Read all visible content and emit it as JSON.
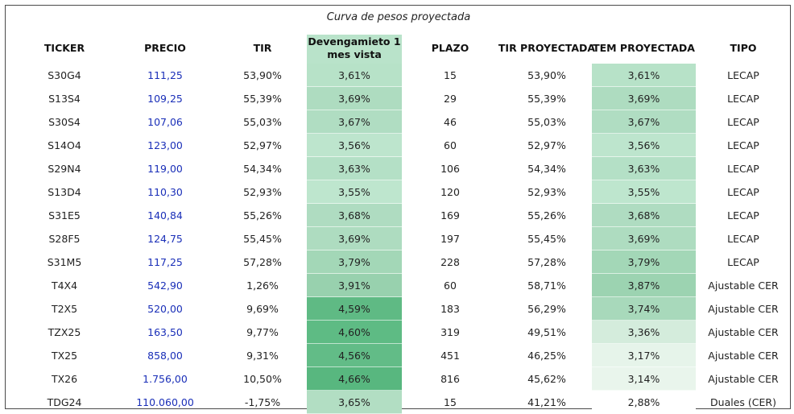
{
  "title": "Curva de pesos proyectada",
  "columns": {
    "ticker": "TICKER",
    "precio": "PRECIO",
    "tir": "TIR",
    "devengamiento": "Devengamieto 1\nmes vista",
    "plazo": "PLAZO",
    "tir_proyectada": "TIR PROYECTADA",
    "tem_proyectada": "TEM PROYECTADA",
    "tipo": "TIPO"
  },
  "rows": [
    {
      "ticker": "S30G4",
      "precio": "111,25",
      "tir": "53,90%",
      "dev": "3,61%",
      "plazo": "15",
      "tir_proy": "53,90%",
      "tem_proy": "3,61%",
      "tipo": "LECAP",
      "dev_color": "#b7e2c8",
      "tem_color": "#b7e2c8"
    },
    {
      "ticker": "S13S4",
      "precio": "109,25",
      "tir": "55,39%",
      "dev": "3,69%",
      "plazo": "29",
      "tir_proy": "55,39%",
      "tem_proy": "3,69%",
      "tipo": "LECAP",
      "dev_color": "#aedcc0",
      "tem_color": "#aedcc0"
    },
    {
      "ticker": "S30S4",
      "precio": "107,06",
      "tir": "55,03%",
      "dev": "3,67%",
      "plazo": "46",
      "tir_proy": "55,03%",
      "tem_proy": "3,67%",
      "tipo": "LECAP",
      "dev_color": "#b0ddc2",
      "tem_color": "#b0ddc2"
    },
    {
      "ticker": "S14O4",
      "precio": "123,00",
      "tir": "52,97%",
      "dev": "3,56%",
      "plazo": "60",
      "tir_proy": "52,97%",
      "tem_proy": "3,56%",
      "tipo": "LECAP",
      "dev_color": "#bde5cd",
      "tem_color": "#bde5cd"
    },
    {
      "ticker": "S29N4",
      "precio": "119,00",
      "tir": "54,34%",
      "dev": "3,63%",
      "plazo": "106",
      "tir_proy": "54,34%",
      "tem_proy": "3,63%",
      "tipo": "LECAP",
      "dev_color": "#b4e0c6",
      "tem_color": "#b4e0c6"
    },
    {
      "ticker": "S13D4",
      "precio": "110,30",
      "tir": "52,93%",
      "dev": "3,55%",
      "plazo": "120",
      "tir_proy": "52,93%",
      "tem_proy": "3,55%",
      "tipo": "LECAP",
      "dev_color": "#bee6ce",
      "tem_color": "#bee6ce"
    },
    {
      "ticker": "S31E5",
      "precio": "140,84",
      "tir": "55,26%",
      "dev": "3,68%",
      "plazo": "169",
      "tir_proy": "55,26%",
      "tem_proy": "3,68%",
      "tipo": "LECAP",
      "dev_color": "#afdcc1",
      "tem_color": "#afdcc1"
    },
    {
      "ticker": "S28F5",
      "precio": "124,75",
      "tir": "55,45%",
      "dev": "3,69%",
      "plazo": "197",
      "tir_proy": "55,45%",
      "tem_proy": "3,69%",
      "tipo": "LECAP",
      "dev_color": "#aedcc0",
      "tem_color": "#aedcc0"
    },
    {
      "ticker": "S31M5",
      "precio": "117,25",
      "tir": "57,28%",
      "dev": "3,79%",
      "plazo": "228",
      "tir_proy": "57,28%",
      "tem_proy": "3,79%",
      "tipo": "LECAP",
      "dev_color": "#a3d7b7",
      "tem_color": "#a3d7b7"
    },
    {
      "ticker": "T4X4",
      "precio": "542,90",
      "tir": "1,26%",
      "dev": "3,91%",
      "plazo": "60",
      "tir_proy": "58,71%",
      "tem_proy": "3,87%",
      "tipo": "Ajustable CER",
      "dev_color": "#98d1ae",
      "tem_color": "#9cd3b1"
    },
    {
      "ticker": "T2X5",
      "precio": "520,00",
      "tir": "9,69%",
      "dev": "4,59%",
      "plazo": "183",
      "tir_proy": "56,29%",
      "tem_proy": "3,74%",
      "tipo": "Ajustable CER",
      "dev_color": "#5fba84",
      "tem_color": "#a8d9bb"
    },
    {
      "ticker": "TZX25",
      "precio": "163,50",
      "tir": "9,77%",
      "dev": "4,60%",
      "plazo": "319",
      "tir_proy": "49,51%",
      "tem_proy": "3,36%",
      "tipo": "Ajustable CER",
      "dev_color": "#5ebb84",
      "tem_color": "#d4ecdc"
    },
    {
      "ticker": "TX25",
      "precio": "858,00",
      "tir": "9,31%",
      "dev": "4,56%",
      "plazo": "451",
      "tir_proy": "46,25%",
      "tem_proy": "3,17%",
      "tipo": "Ajustable CER",
      "dev_color": "#62bc87",
      "tem_color": "#e6f4ea"
    },
    {
      "ticker": "TX26",
      "precio": "1.756,00",
      "tir": "10,50%",
      "dev": "4,66%",
      "plazo": "816",
      "tir_proy": "45,62%",
      "tem_proy": "3,14%",
      "tipo": "Ajustable CER",
      "dev_color": "#58b77f",
      "tem_color": "#e9f5ec"
    },
    {
      "ticker": "TDG24",
      "precio": "110.060,00",
      "tir": "-1,75%",
      "dev": "3,65%",
      "plazo": "15",
      "tir_proy": "41,21%",
      "tem_proy": "2,88%",
      "tipo": "Duales (CER)",
      "dev_color": "#b2dec3",
      "tem_color": "#ffffff"
    }
  ]
}
